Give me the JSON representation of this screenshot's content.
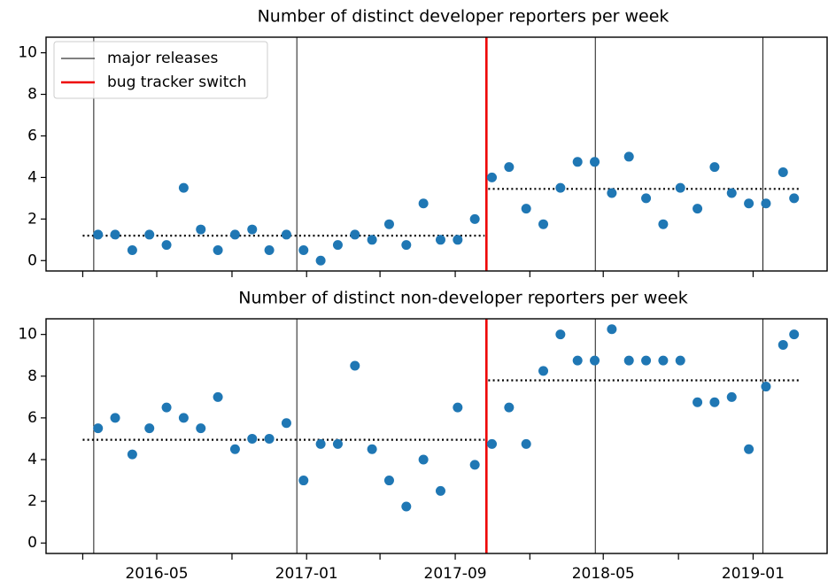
{
  "chart_data": [
    {
      "type": "scatter",
      "title": "Number of distinct developer reporters per week",
      "x": [
        "2016-01-26",
        "2016-02-23",
        "2016-03-22",
        "2016-04-19",
        "2016-05-17",
        "2016-06-14",
        "2016-07-12",
        "2016-08-09",
        "2016-09-06",
        "2016-10-04",
        "2016-11-01",
        "2016-11-29",
        "2016-12-27",
        "2017-01-24",
        "2017-02-21",
        "2017-03-21",
        "2017-04-18",
        "2017-05-16",
        "2017-06-13",
        "2017-07-11",
        "2017-08-08",
        "2017-09-05",
        "2017-10-03",
        "2017-10-31",
        "2017-11-28",
        "2017-12-26",
        "2018-01-23",
        "2018-02-20",
        "2018-03-20",
        "2018-04-17",
        "2018-05-15",
        "2018-06-12",
        "2018-07-10",
        "2018-08-07",
        "2018-09-04",
        "2018-10-02",
        "2018-10-30",
        "2018-11-27",
        "2018-12-25",
        "2019-01-22",
        "2019-02-19",
        "2019-03-09"
      ],
      "series": [
        {
          "color": "#1f77b4",
          "values": [
            1.25,
            1.25,
            0.5,
            1.25,
            0.75,
            3.5,
            1.5,
            0.5,
            1.25,
            1.5,
            0.5,
            1.25,
            0.5,
            0,
            0.75,
            1.25,
            1.0,
            1.75,
            0.75,
            2.75,
            1.0,
            1.0,
            2.0,
            4.0,
            4.5,
            2.5,
            1.75,
            3.5,
            4.75,
            4.75,
            3.25,
            5.0,
            3.0,
            1.75,
            3.5,
            2.5,
            4.5,
            3.25,
            2.75,
            2.75,
            4.25,
            3.0
          ]
        }
      ],
      "releases": [
        "2016-01-19",
        "2016-12-16",
        "2018-04-18",
        "2019-01-17"
      ],
      "release_color": "#000000",
      "switch": "2017-10-22",
      "switch_color": "#ee0000",
      "means": [
        {
          "value": 1.2,
          "x": [
            "2016-01-01",
            "2017-10-19"
          ]
        },
        {
          "value": 3.45,
          "x": [
            "2017-10-25",
            "2019-03-17"
          ]
        }
      ],
      "legend": [
        {
          "label": "major releases",
          "color": "#000000"
        },
        {
          "label": "bug tracker switch",
          "color": "#ee0000"
        }
      ],
      "xlim": [
        "2015-11-02",
        "2019-05-02"
      ],
      "xticks": [
        "2016-05",
        "2017-01",
        "2017-09",
        "2018-05",
        "2019-01"
      ],
      "xminorticks": [
        "2016-01",
        "2016-09",
        "2017-05",
        "2018-01",
        "2018-09"
      ],
      "show_xtick_labels": false,
      "ylim": [
        -0.5,
        10.75
      ],
      "yticks": [
        0,
        2,
        4,
        6,
        8,
        10
      ]
    },
    {
      "type": "scatter",
      "title": "Number of distinct non-developer reporters per week",
      "x": [
        "2016-01-26",
        "2016-02-23",
        "2016-03-22",
        "2016-04-19",
        "2016-05-17",
        "2016-06-14",
        "2016-07-12",
        "2016-08-09",
        "2016-09-06",
        "2016-10-04",
        "2016-11-01",
        "2016-11-29",
        "2016-12-27",
        "2017-01-24",
        "2017-02-21",
        "2017-03-21",
        "2017-04-18",
        "2017-05-16",
        "2017-06-13",
        "2017-07-11",
        "2017-08-08",
        "2017-09-05",
        "2017-10-03",
        "2017-10-31",
        "2017-11-28",
        "2017-12-26",
        "2018-01-23",
        "2018-02-20",
        "2018-03-20",
        "2018-04-17",
        "2018-05-15",
        "2018-06-12",
        "2018-07-10",
        "2018-08-07",
        "2018-09-04",
        "2018-10-02",
        "2018-10-30",
        "2018-11-27",
        "2018-12-25",
        "2019-01-22",
        "2019-02-19",
        "2019-03-09"
      ],
      "series": [
        {
          "color": "#1f77b4",
          "values": [
            5.5,
            6,
            4.25,
            5.5,
            6.5,
            6,
            5.5,
            7,
            4.5,
            5,
            5,
            5.75,
            3,
            4.75,
            4.75,
            8.5,
            4.5,
            3,
            1.75,
            4,
            2.5,
            6.5,
            3.75,
            4.75,
            6.5,
            4.75,
            8.25,
            10,
            8.75,
            8.75,
            10.25,
            8.75,
            8.75,
            8.75,
            8.75,
            6.75,
            6.75,
            7,
            4.5,
            7.5,
            9.5,
            10
          ]
        }
      ],
      "releases": [
        "2016-01-19",
        "2016-12-16",
        "2018-04-18",
        "2019-01-17"
      ],
      "release_color": "#000000",
      "switch": "2017-10-22",
      "switch_color": "#ee0000",
      "means": [
        {
          "value": 4.95,
          "x": [
            "2016-01-01",
            "2017-10-19"
          ]
        },
        {
          "value": 7.8,
          "x": [
            "2017-10-25",
            "2019-03-17"
          ]
        }
      ],
      "xlim": [
        "2015-11-02",
        "2019-05-02"
      ],
      "xticks": [
        "2016-05",
        "2017-01",
        "2017-09",
        "2018-05",
        "2019-01"
      ],
      "xminorticks": [
        "2016-01",
        "2016-09",
        "2017-05",
        "2018-01",
        "2018-09"
      ],
      "show_xtick_labels": true,
      "ylim": [
        -0.5,
        10.75
      ],
      "yticks": [
        0,
        2,
        4,
        6,
        8,
        10
      ]
    }
  ]
}
